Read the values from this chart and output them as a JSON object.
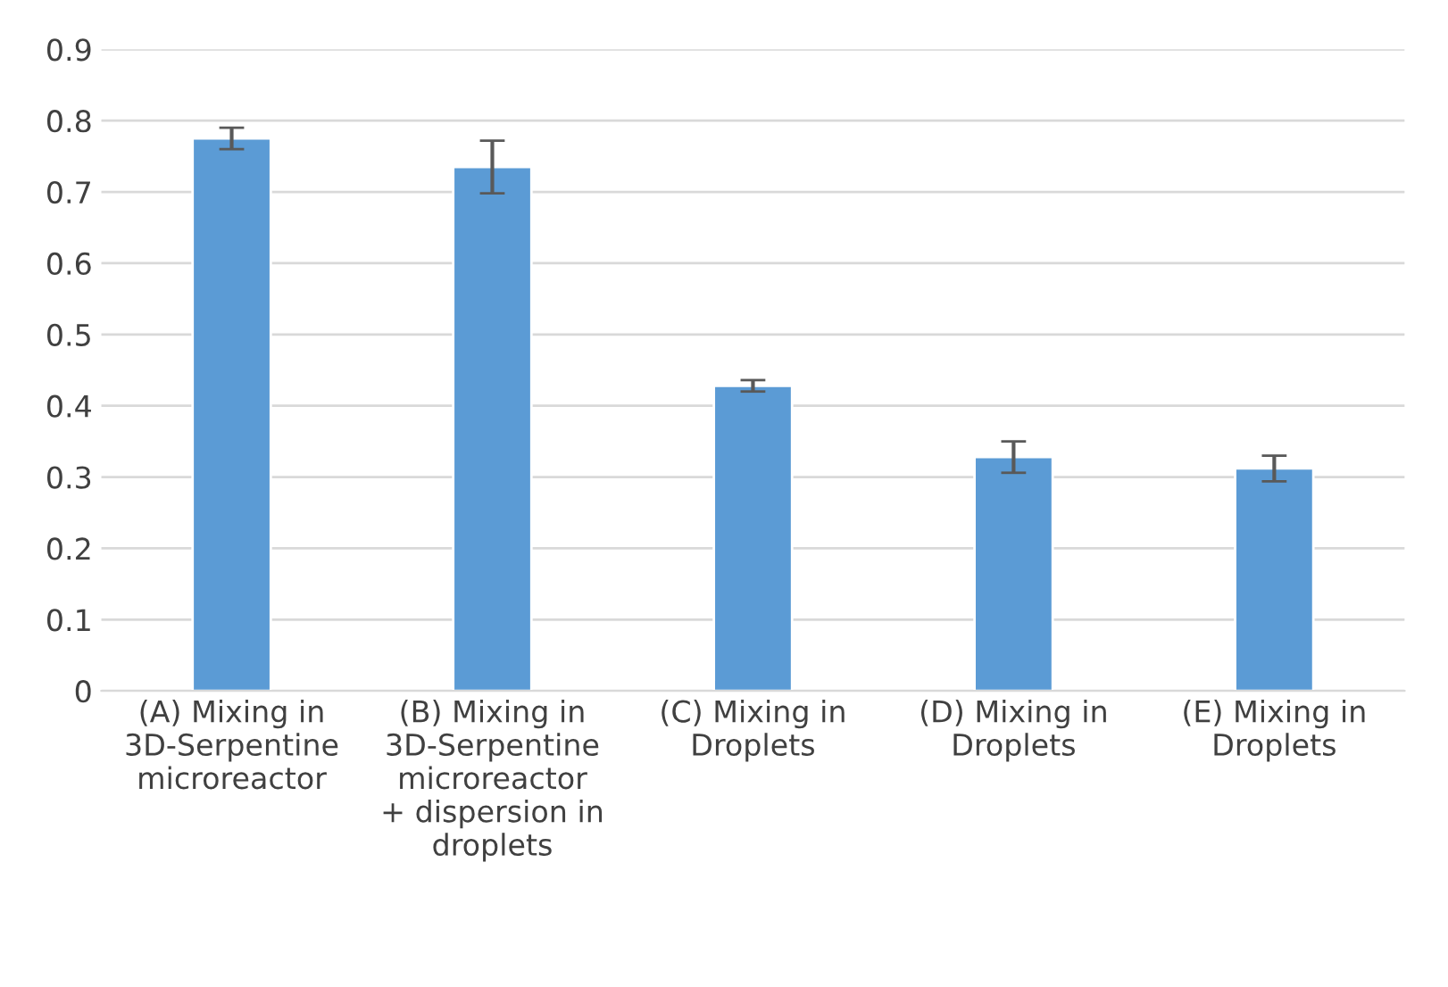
{
  "chart_data": {
    "type": "bar",
    "categories": [
      "(A) Mixing in\n3D-Serpentine\nmicroreactor",
      "(B) Mixing in\n3D-Serpentine\nmicroreactor\n+ dispersion in\ndroplets",
      "(C) Mixing in\nDroplets",
      "(D) Mixing in\nDroplets",
      "(E) Mixing in\nDroplets"
    ],
    "values": [
      0.775,
      0.735,
      0.428,
      0.328,
      0.312
    ],
    "errors": [
      0.015,
      0.037,
      0.008,
      0.022,
      0.018
    ],
    "color": "#5b9bd5",
    "ylim": [
      0,
      0.9
    ],
    "yticks": [
      0,
      0.1,
      0.2,
      0.3,
      0.4,
      0.5,
      0.6,
      0.7,
      0.8,
      0.9
    ],
    "grid": "y"
  }
}
